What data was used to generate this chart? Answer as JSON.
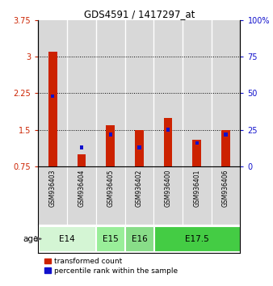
{
  "title": "GDS4591 / 1417297_at",
  "samples": [
    "GSM936403",
    "GSM936404",
    "GSM936405",
    "GSM936402",
    "GSM936400",
    "GSM936401",
    "GSM936406"
  ],
  "transformed_count": [
    3.1,
    1.0,
    1.6,
    1.5,
    1.75,
    1.3,
    1.5
  ],
  "percentile_rank_pct": [
    48,
    13,
    22,
    13,
    25,
    16,
    22
  ],
  "ylim_left": [
    0.75,
    3.75
  ],
  "yticks_left": [
    0.75,
    1.5,
    2.25,
    3.0,
    3.75
  ],
  "ylim_right": [
    0,
    100
  ],
  "yticks_right": [
    0,
    25,
    50,
    75,
    100
  ],
  "ytick_labels_left": [
    "0.75",
    "1.5",
    "2.25",
    "3",
    "3.75"
  ],
  "ytick_labels_right": [
    "0",
    "25",
    "50",
    "75",
    "100%"
  ],
  "hlines": [
    1.5,
    2.25,
    3.0
  ],
  "red_color": "#cc2200",
  "blue_color": "#1111cc",
  "age_groups": [
    {
      "label": "E14",
      "indices": [
        0,
        1
      ],
      "color": "#d4f5d4"
    },
    {
      "label": "E15",
      "indices": [
        2
      ],
      "color": "#99ee99"
    },
    {
      "label": "E16",
      "indices": [
        3
      ],
      "color": "#88dd88"
    },
    {
      "label": "E17.5",
      "indices": [
        4,
        5,
        6
      ],
      "color": "#44cc44"
    }
  ],
  "legend_red_label": "transformed count",
  "legend_blue_label": "percentile rank within the sample",
  "age_label": "age",
  "bar_bottom": 0.75,
  "bg_color": "#d8d8d8",
  "col_sep_color": "#b0b0b0"
}
